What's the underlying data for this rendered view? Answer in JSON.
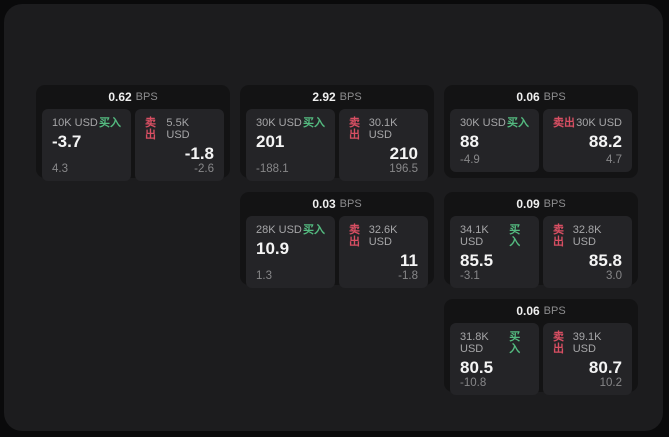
{
  "labels": {
    "buy": "买入",
    "sell": "卖出",
    "bps_unit": "BPS"
  },
  "colors": {
    "buy_green": "#54bb80",
    "sell_red": "#d94f63",
    "panel_bg": "#1c1c1e",
    "card_bg": "#131314",
    "tile_bg": "#242427",
    "page_bg": "#0a0a0b"
  },
  "cards": [
    {
      "bps": "0.62",
      "buy": {
        "size": "10K USD",
        "main": "-3.7",
        "sub": "4.3"
      },
      "sell": {
        "size": "5.5K USD",
        "main": "-1.8",
        "sub": "-2.6"
      }
    },
    {
      "bps": "2.92",
      "buy": {
        "size": "30K USD",
        "main": "201",
        "sub": "-188.1"
      },
      "sell": {
        "size": "30.1K USD",
        "main": "210",
        "sub": "196.5"
      }
    },
    {
      "bps": "0.06",
      "buy": {
        "size": "30K USD",
        "main": "88",
        "sub": "-4.9"
      },
      "sell": {
        "size": "30K USD",
        "main": "88.2",
        "sub": "4.7"
      }
    },
    {
      "bps": "0.03",
      "buy": {
        "size": "28K USD",
        "main": "10.9",
        "sub": "1.3"
      },
      "sell": {
        "size": "32.6K USD",
        "main": "11",
        "sub": "-1.8"
      }
    },
    {
      "bps": "0.09",
      "buy": {
        "size": "34.1K USD",
        "main": "85.5",
        "sub": "-3.1"
      },
      "sell": {
        "size": "32.8K USD",
        "main": "85.8",
        "sub": "3.0"
      }
    },
    {
      "bps": "0.06",
      "buy": {
        "size": "31.8K USD",
        "main": "80.5",
        "sub": "-10.8"
      },
      "sell": {
        "size": "39.1K USD",
        "main": "80.7",
        "sub": "10.2"
      }
    }
  ]
}
